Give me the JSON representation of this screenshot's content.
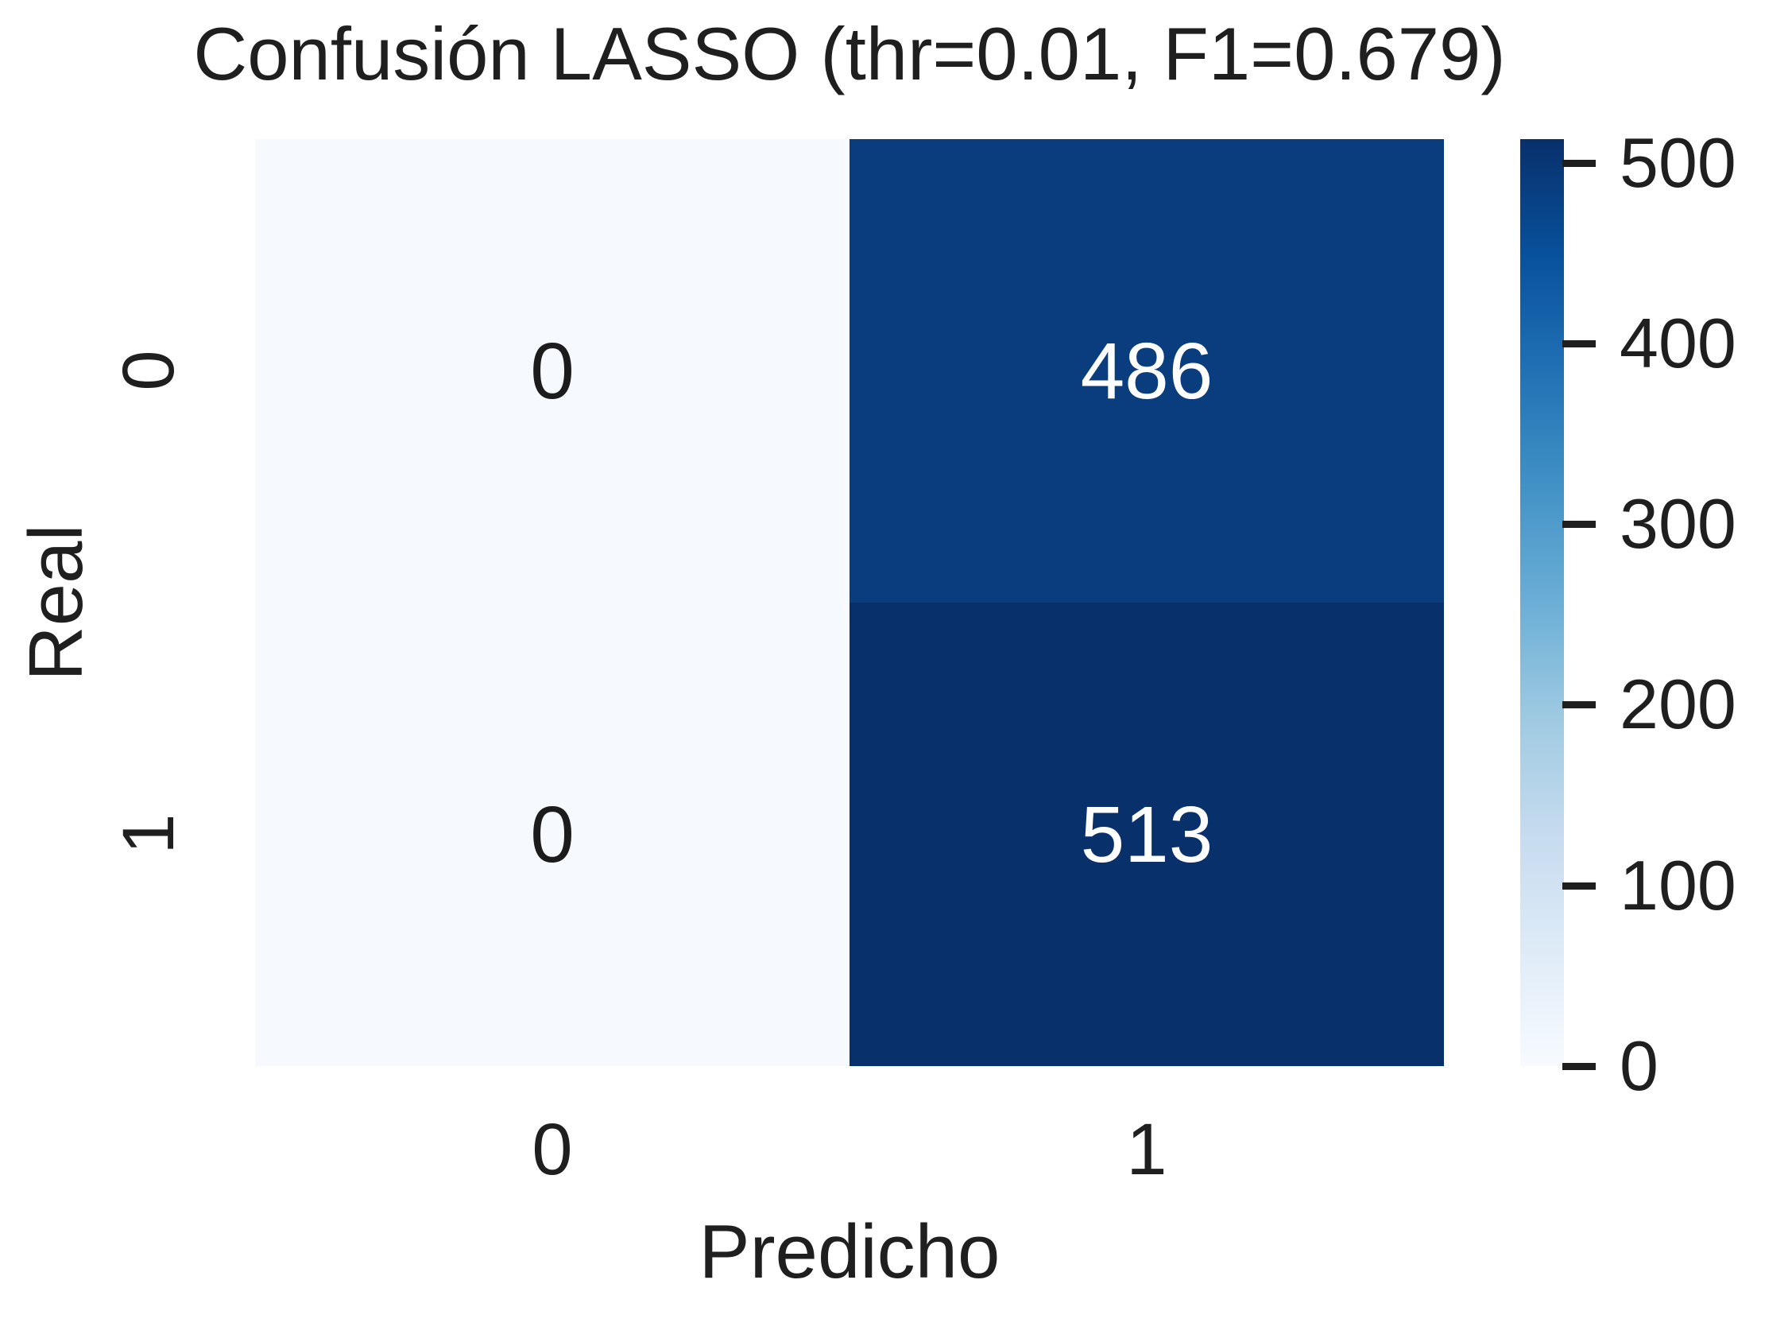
{
  "title": "Confusión LASSO (thr=0.01, F1=0.679)",
  "axes": {
    "x_label": "Predicho",
    "y_label": "Real",
    "x_ticks": [
      "0",
      "1"
    ],
    "y_ticks": [
      "0",
      "1"
    ]
  },
  "cells": [
    {
      "row": "0",
      "col": "0",
      "value": "0",
      "bg": "#f6fafe",
      "fg": "#1c1c1c"
    },
    {
      "row": "0",
      "col": "1",
      "value": "486",
      "bg": "#0a3d7e",
      "fg": "#ffffff"
    },
    {
      "row": "1",
      "col": "0",
      "value": "0",
      "bg": "#f6fafe",
      "fg": "#1c1c1c"
    },
    {
      "row": "1",
      "col": "1",
      "value": "513",
      "bg": "#08306b",
      "fg": "#ffffff"
    }
  ],
  "colorbar": {
    "tick_labels": [
      "500",
      "400",
      "300",
      "200",
      "100",
      "0"
    ],
    "min_color": "#f7fbff",
    "max_color": "#08306b"
  },
  "chart_data": {
    "type": "heatmap",
    "title": "Confusión LASSO (thr=0.01, F1=0.679)",
    "xlabel": "Predicho",
    "ylabel": "Real",
    "x_categories": [
      "0",
      "1"
    ],
    "y_categories": [
      "0",
      "1"
    ],
    "matrix": [
      [
        0,
        486
      ],
      [
        0,
        513
      ]
    ],
    "annotations": [
      [
        "0",
        "486"
      ],
      [
        "0",
        "513"
      ]
    ],
    "colormap": "Blues",
    "colormap_stops": [
      "#f7fbff",
      "#deebf7",
      "#c6dbef",
      "#9ecae1",
      "#6baed6",
      "#4292c6",
      "#2171b5",
      "#08519c",
      "#08306b"
    ],
    "vmin": 0,
    "vmax": 513,
    "colorbar_ticks": [
      0,
      100,
      200,
      300,
      400,
      500
    ],
    "colorbar_position": "right",
    "grid": false,
    "legend": false
  }
}
